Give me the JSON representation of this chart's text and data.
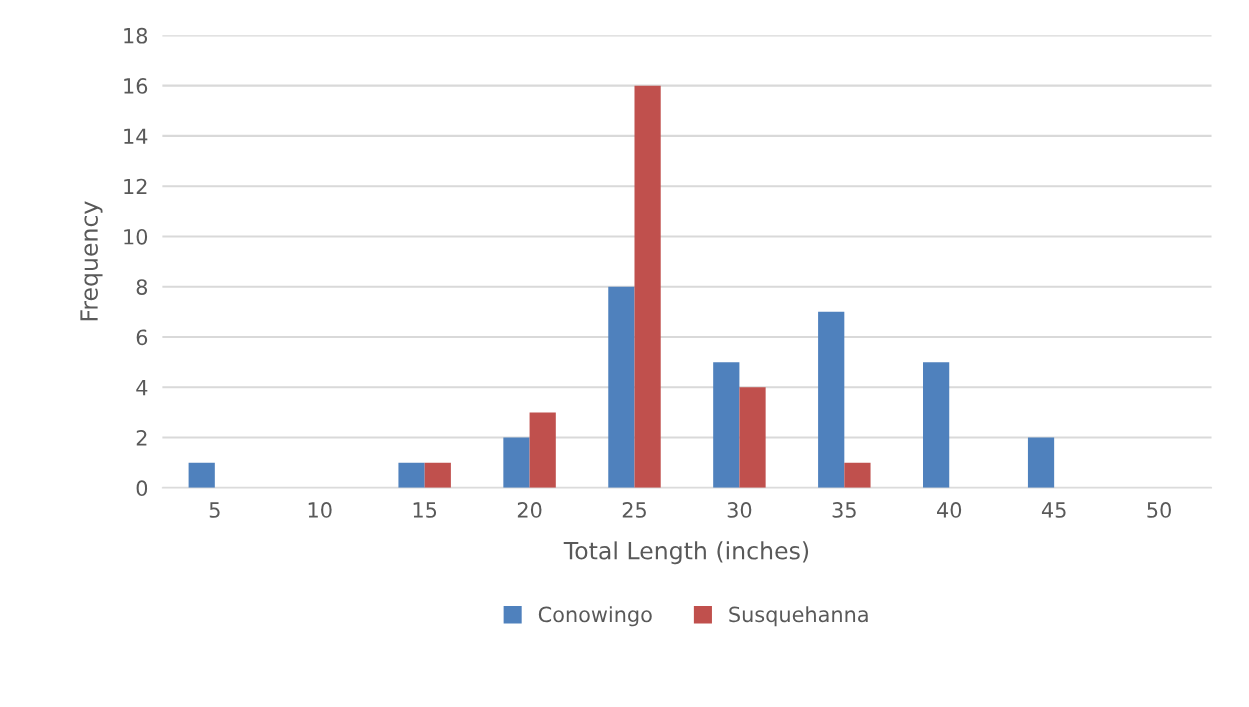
{
  "chart_data": {
    "type": "bar",
    "xlabel": "Total Length (inches)",
    "ylabel": "Frequency",
    "categories": [
      "5",
      "10",
      "15",
      "20",
      "25",
      "30",
      "35",
      "40",
      "45",
      "50"
    ],
    "series": [
      {
        "name": "Conowingo",
        "color": "#4f81bd",
        "values": [
          1,
          0,
          1,
          2,
          8,
          5,
          7,
          5,
          2,
          0
        ]
      },
      {
        "name": "Susquehanna",
        "color": "#c0504d",
        "values": [
          0,
          0,
          1,
          3,
          16,
          4,
          1,
          0,
          0,
          0
        ]
      }
    ],
    "ylim": [
      0,
      18
    ],
    "yticks": [
      0,
      2,
      4,
      6,
      8,
      10,
      12,
      14,
      16,
      18
    ],
    "grid": "y",
    "legend": "bottom"
  }
}
